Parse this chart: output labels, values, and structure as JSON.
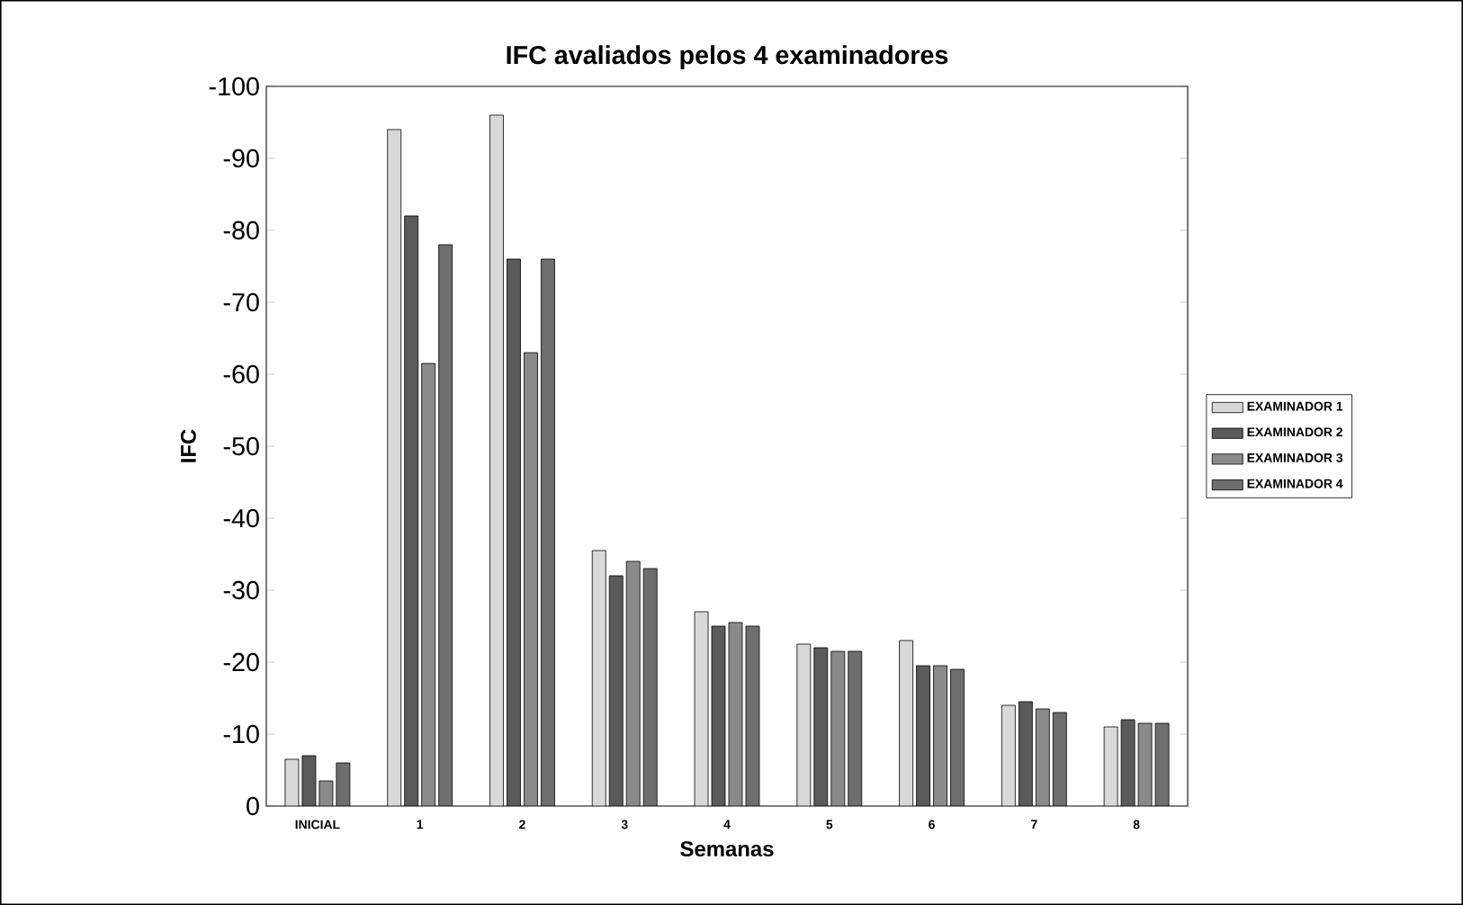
{
  "chart_data": {
    "type": "bar",
    "title": "IFC avaliados pelos 4 examinadores",
    "xlabel": "Semanas",
    "ylabel": "IFC",
    "categories": [
      "INICIAL",
      "1",
      "2",
      "3",
      "4",
      "5",
      "6",
      "7",
      "8"
    ],
    "series": [
      {
        "name": "EXAMINADOR 1",
        "color": "#d9d9d9",
        "values": [
          -6.5,
          -94,
          -96,
          -35.5,
          -27,
          -22.5,
          -23,
          -14,
          -11
        ]
      },
      {
        "name": "EXAMINADOR 2",
        "color": "#5a5a5a",
        "values": [
          -7,
          -82,
          -76,
          -32,
          -25,
          -22,
          -19.5,
          -14.5,
          -12
        ]
      },
      {
        "name": "EXAMINADOR 3",
        "color": "#8a8a8a",
        "values": [
          -3.5,
          -61.5,
          -63,
          -34,
          -25.5,
          -21.5,
          -19.5,
          -13.5,
          -11.5
        ]
      },
      {
        "name": "EXAMINADOR 4",
        "color": "#6e6e6e",
        "values": [
          -6,
          -78,
          -76,
          -33,
          -25,
          -21.5,
          -19,
          -13,
          -11.5
        ]
      }
    ],
    "ylim": [
      0,
      -100
    ],
    "yticks": [
      0,
      -10,
      -20,
      -30,
      -40,
      -50,
      -60,
      -70,
      -80,
      -90,
      -100
    ],
    "grid": false,
    "legend": "right"
  }
}
